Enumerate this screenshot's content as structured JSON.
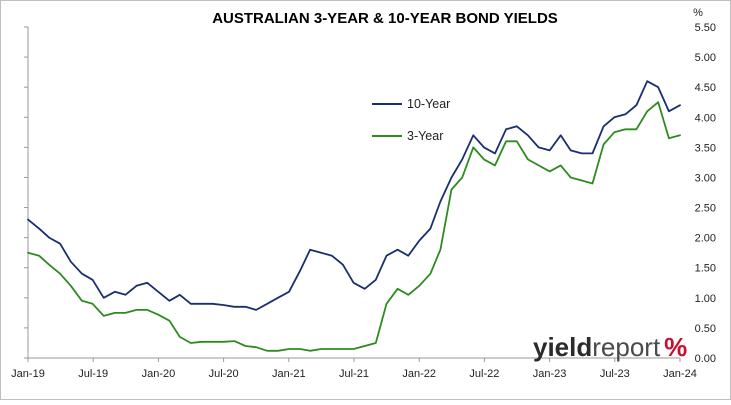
{
  "chart_data": {
    "type": "line",
    "title": "AUSTRALIAN 3-YEAR & 10-YEAR BOND YIELDS",
    "ylabel": "%",
    "xlabel": "",
    "ylim": [
      0,
      5.5
    ],
    "yticks": [
      "0.00",
      "0.50",
      "1.00",
      "1.50",
      "2.00",
      "2.50",
      "3.00",
      "3.50",
      "4.00",
      "4.50",
      "5.00",
      "5.50"
    ],
    "xticks": [
      "Jan-19",
      "Jul-19",
      "Jan-20",
      "Jul-20",
      "Jan-21",
      "Jul-21",
      "Jan-22",
      "Jul-22",
      "Jan-23",
      "Jul-23",
      "Jan-24"
    ],
    "grid": false,
    "legend_position": "upper-center",
    "series": [
      {
        "name": "10-Year",
        "color": "#1a2f6e",
        "x": [
          "2019-01-01",
          "2019-02-01",
          "2019-03-01",
          "2019-04-01",
          "2019-05-01",
          "2019-06-01",
          "2019-07-01",
          "2019-08-01",
          "2019-09-01",
          "2019-10-01",
          "2019-11-01",
          "2019-12-01",
          "2020-01-01",
          "2020-02-01",
          "2020-03-01",
          "2020-04-01",
          "2020-05-01",
          "2020-06-01",
          "2020-07-01",
          "2020-08-01",
          "2020-09-01",
          "2020-10-01",
          "2020-11-01",
          "2020-12-01",
          "2021-01-01",
          "2021-02-01",
          "2021-03-01",
          "2021-04-01",
          "2021-05-01",
          "2021-06-01",
          "2021-07-01",
          "2021-08-01",
          "2021-09-01",
          "2021-10-01",
          "2021-11-01",
          "2021-12-01",
          "2022-01-01",
          "2022-02-01",
          "2022-03-01",
          "2022-04-01",
          "2022-05-01",
          "2022-06-01",
          "2022-07-01",
          "2022-08-01",
          "2022-09-01",
          "2022-10-01",
          "2022-11-01",
          "2022-12-01",
          "2023-01-01",
          "2023-02-01",
          "2023-03-01",
          "2023-04-01",
          "2023-05-01",
          "2023-06-01",
          "2023-07-01",
          "2023-08-01",
          "2023-09-01",
          "2023-10-01",
          "2023-11-01",
          "2023-12-01",
          "2024-01-01"
        ],
        "values": [
          2.3,
          2.15,
          2.0,
          1.9,
          1.6,
          1.4,
          1.3,
          1.0,
          1.1,
          1.05,
          1.2,
          1.25,
          1.1,
          0.95,
          1.05,
          0.9,
          0.9,
          0.9,
          0.88,
          0.85,
          0.85,
          0.8,
          0.9,
          1.0,
          1.1,
          1.45,
          1.8,
          1.75,
          1.7,
          1.55,
          1.25,
          1.15,
          1.3,
          1.7,
          1.8,
          1.7,
          1.95,
          2.15,
          2.6,
          3.0,
          3.3,
          3.7,
          3.5,
          3.4,
          3.8,
          3.85,
          3.7,
          3.5,
          3.45,
          3.7,
          3.45,
          3.4,
          3.4,
          3.85,
          4.0,
          4.05,
          4.2,
          4.6,
          4.5,
          4.1,
          4.2
        ]
      },
      {
        "name": "3-Year",
        "color": "#2e8b1f",
        "x": [
          "2019-01-01",
          "2019-02-01",
          "2019-03-01",
          "2019-04-01",
          "2019-05-01",
          "2019-06-01",
          "2019-07-01",
          "2019-08-01",
          "2019-09-01",
          "2019-10-01",
          "2019-11-01",
          "2019-12-01",
          "2020-01-01",
          "2020-02-01",
          "2020-03-01",
          "2020-04-01",
          "2020-05-01",
          "2020-06-01",
          "2020-07-01",
          "2020-08-01",
          "2020-09-01",
          "2020-10-01",
          "2020-11-01",
          "2020-12-01",
          "2021-01-01",
          "2021-02-01",
          "2021-03-01",
          "2021-04-01",
          "2021-05-01",
          "2021-06-01",
          "2021-07-01",
          "2021-08-01",
          "2021-09-01",
          "2021-10-01",
          "2021-11-01",
          "2021-12-01",
          "2022-01-01",
          "2022-02-01",
          "2022-03-01",
          "2022-04-01",
          "2022-05-01",
          "2022-06-01",
          "2022-07-01",
          "2022-08-01",
          "2022-09-01",
          "2022-10-01",
          "2022-11-01",
          "2022-12-01",
          "2023-01-01",
          "2023-02-01",
          "2023-03-01",
          "2023-04-01",
          "2023-05-01",
          "2023-06-01",
          "2023-07-01",
          "2023-08-01",
          "2023-09-01",
          "2023-10-01",
          "2023-11-01",
          "2023-12-01",
          "2024-01-01"
        ],
        "values": [
          1.75,
          1.7,
          1.55,
          1.4,
          1.2,
          0.95,
          0.9,
          0.7,
          0.75,
          0.75,
          0.8,
          0.8,
          0.72,
          0.62,
          0.35,
          0.25,
          0.27,
          0.27,
          0.27,
          0.28,
          0.2,
          0.18,
          0.12,
          0.12,
          0.15,
          0.15,
          0.12,
          0.15,
          0.15,
          0.15,
          0.15,
          0.2,
          0.25,
          0.9,
          1.15,
          1.05,
          1.2,
          1.4,
          1.8,
          2.8,
          3.0,
          3.5,
          3.3,
          3.2,
          3.6,
          3.6,
          3.3,
          3.2,
          3.1,
          3.2,
          3.0,
          2.95,
          2.9,
          3.55,
          3.75,
          3.8,
          3.8,
          4.1,
          4.25,
          3.65,
          3.7
        ]
      }
    ]
  },
  "logo": {
    "bold_part": "yield",
    "light_part": "report",
    "symbol": "%"
  }
}
